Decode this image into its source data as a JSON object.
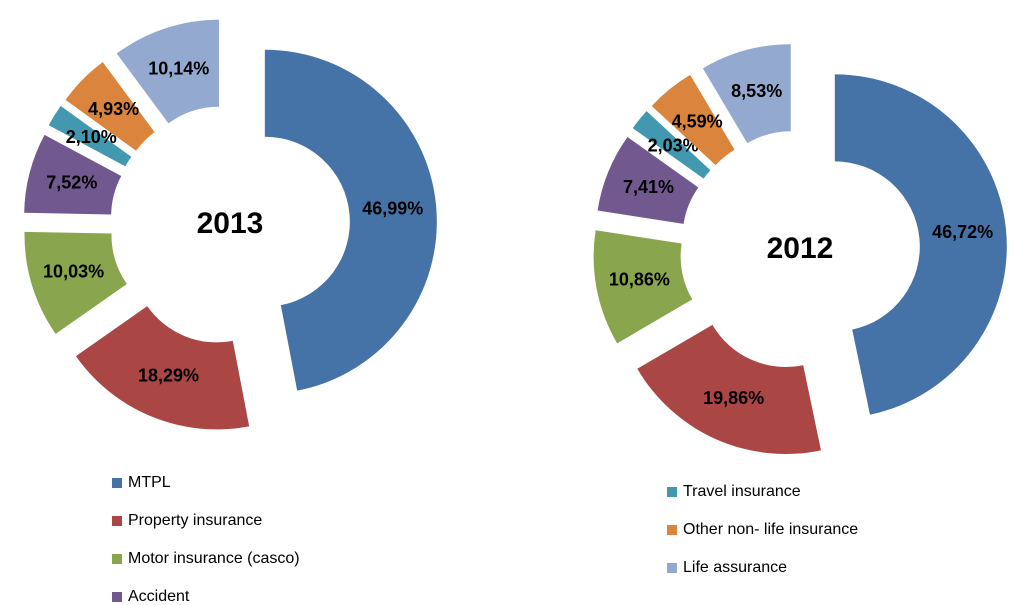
{
  "chart_data": [
    {
      "type": "donut",
      "title": "2013",
      "categories": [
        "MTPL",
        "Property insurance",
        "Motor insurance (casco)",
        "Accident",
        "Travel insurance",
        "Other non- life insurance",
        "Life assurance"
      ],
      "values": [
        46.99,
        18.29,
        10.03,
        7.52,
        2.1,
        4.93,
        10.14
      ],
      "value_labels": [
        "46,99%",
        "18,29%",
        "10,03%",
        "7,52%",
        "2,10%",
        "4,93%",
        "10,14%"
      ],
      "colors": [
        "#4572a7",
        "#aa4643",
        "#89a54e",
        "#71588f",
        "#4198af",
        "#db843d",
        "#93a9cf"
      ]
    },
    {
      "type": "donut",
      "title": "2012",
      "categories": [
        "MTPL",
        "Property insurance",
        "Motor insurance (casco)",
        "Accident",
        "Travel insurance",
        "Other non- life insurance",
        "Life assurance"
      ],
      "values": [
        46.72,
        19.86,
        10.86,
        7.41,
        2.03,
        4.59,
        8.53
      ],
      "value_labels": [
        "46,72%",
        "19,86%",
        "10,86%",
        "7,41%",
        "2,03%",
        "4,59%",
        "8,53%"
      ],
      "colors": [
        "#4572a7",
        "#aa4643",
        "#89a54e",
        "#71588f",
        "#4198af",
        "#db843d",
        "#93a9cf"
      ]
    }
  ]
}
